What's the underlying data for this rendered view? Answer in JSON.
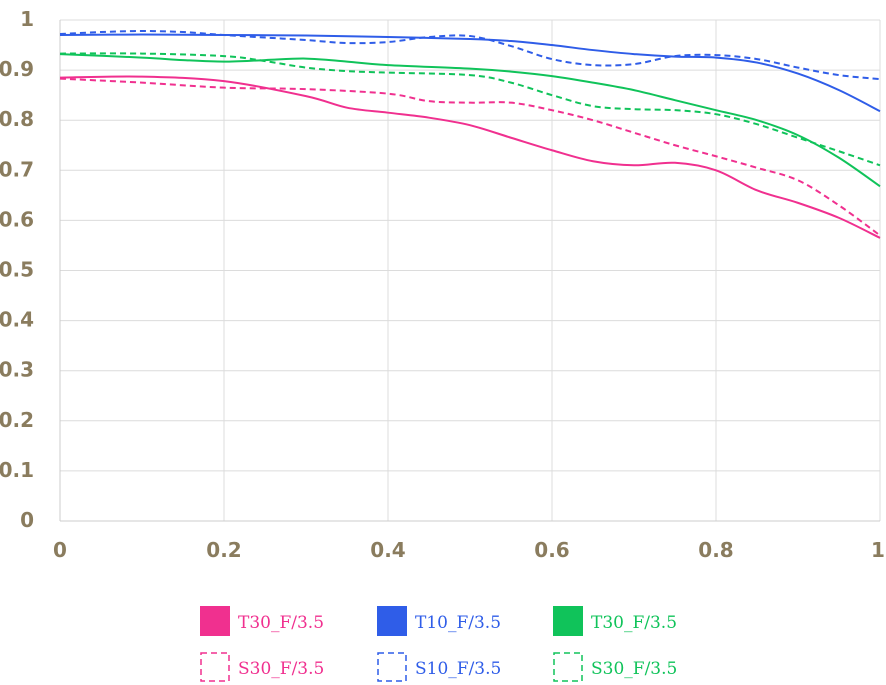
{
  "chart_data": {
    "type": "line",
    "title": "",
    "xlabel": "",
    "ylabel": "",
    "xlim": [
      0,
      1
    ],
    "ylim": [
      0,
      1
    ],
    "grid": true,
    "x_ticks": [
      "0",
      "0.2",
      "0.4",
      "0.6",
      "0.8",
      "1"
    ],
    "y_ticks": [
      "0",
      "0.1",
      "0.2",
      "0.3",
      "0.4",
      "0.5",
      "0.6",
      "0.7",
      "0.8",
      "0.9",
      "1"
    ],
    "legend_position": "bottom",
    "series": [
      {
        "name": "T30_F/3.5",
        "color": "#f0308f",
        "style": "solid",
        "x": [
          0,
          0.1,
          0.2,
          0.3,
          0.35,
          0.4,
          0.45,
          0.5,
          0.55,
          0.6,
          0.65,
          0.7,
          0.75,
          0.8,
          0.85,
          0.9,
          0.95,
          1.0
        ],
        "y": [
          0.885,
          0.887,
          0.878,
          0.848,
          0.825,
          0.815,
          0.805,
          0.79,
          0.765,
          0.74,
          0.718,
          0.71,
          0.715,
          0.7,
          0.66,
          0.635,
          0.605,
          0.565
        ]
      },
      {
        "name": "T10_F/3.5",
        "color": "#2f5de8",
        "style": "solid",
        "x": [
          0,
          0.1,
          0.2,
          0.3,
          0.4,
          0.5,
          0.55,
          0.6,
          0.65,
          0.7,
          0.75,
          0.8,
          0.85,
          0.9,
          0.95,
          1.0
        ],
        "y": [
          0.97,
          0.971,
          0.97,
          0.969,
          0.966,
          0.962,
          0.958,
          0.95,
          0.94,
          0.932,
          0.927,
          0.925,
          0.915,
          0.893,
          0.86,
          0.818
        ]
      },
      {
        "name": "T30_F/3.5",
        "color": "#10c35a",
        "style": "solid",
        "x": [
          0,
          0.1,
          0.15,
          0.2,
          0.25,
          0.3,
          0.35,
          0.4,
          0.5,
          0.55,
          0.6,
          0.65,
          0.7,
          0.75,
          0.8,
          0.85,
          0.9,
          0.95,
          1.0
        ],
        "y": [
          0.932,
          0.925,
          0.92,
          0.917,
          0.92,
          0.923,
          0.917,
          0.91,
          0.903,
          0.897,
          0.888,
          0.875,
          0.86,
          0.84,
          0.82,
          0.8,
          0.77,
          0.725,
          0.668
        ]
      },
      {
        "name": "S30_F/3.5",
        "color": "#f0308f",
        "style": "dashed",
        "x": [
          0,
          0.1,
          0.2,
          0.3,
          0.4,
          0.45,
          0.5,
          0.55,
          0.6,
          0.65,
          0.7,
          0.75,
          0.8,
          0.85,
          0.9,
          0.95,
          1.0
        ],
        "y": [
          0.883,
          0.875,
          0.865,
          0.862,
          0.853,
          0.838,
          0.835,
          0.835,
          0.82,
          0.8,
          0.775,
          0.75,
          0.728,
          0.705,
          0.68,
          0.63,
          0.57
        ]
      },
      {
        "name": "S10_F/3.5",
        "color": "#2f5de8",
        "style": "dashed",
        "x": [
          0,
          0.05,
          0.1,
          0.15,
          0.2,
          0.25,
          0.3,
          0.35,
          0.4,
          0.45,
          0.5,
          0.55,
          0.6,
          0.65,
          0.7,
          0.75,
          0.8,
          0.85,
          0.9,
          0.95,
          1.0
        ],
        "y": [
          0.972,
          0.976,
          0.978,
          0.976,
          0.97,
          0.965,
          0.96,
          0.954,
          0.956,
          0.966,
          0.968,
          0.948,
          0.922,
          0.91,
          0.912,
          0.928,
          0.93,
          0.922,
          0.905,
          0.89,
          0.882
        ]
      },
      {
        "name": "S30_F/3.5",
        "color": "#10c35a",
        "style": "dashed",
        "x": [
          0,
          0.1,
          0.2,
          0.25,
          0.3,
          0.35,
          0.4,
          0.5,
          0.55,
          0.6,
          0.65,
          0.7,
          0.75,
          0.8,
          0.85,
          0.9,
          0.95,
          1.0
        ],
        "y": [
          0.933,
          0.933,
          0.928,
          0.918,
          0.905,
          0.898,
          0.895,
          0.89,
          0.875,
          0.85,
          0.828,
          0.822,
          0.82,
          0.812,
          0.792,
          0.765,
          0.738,
          0.71
        ]
      }
    ]
  }
}
